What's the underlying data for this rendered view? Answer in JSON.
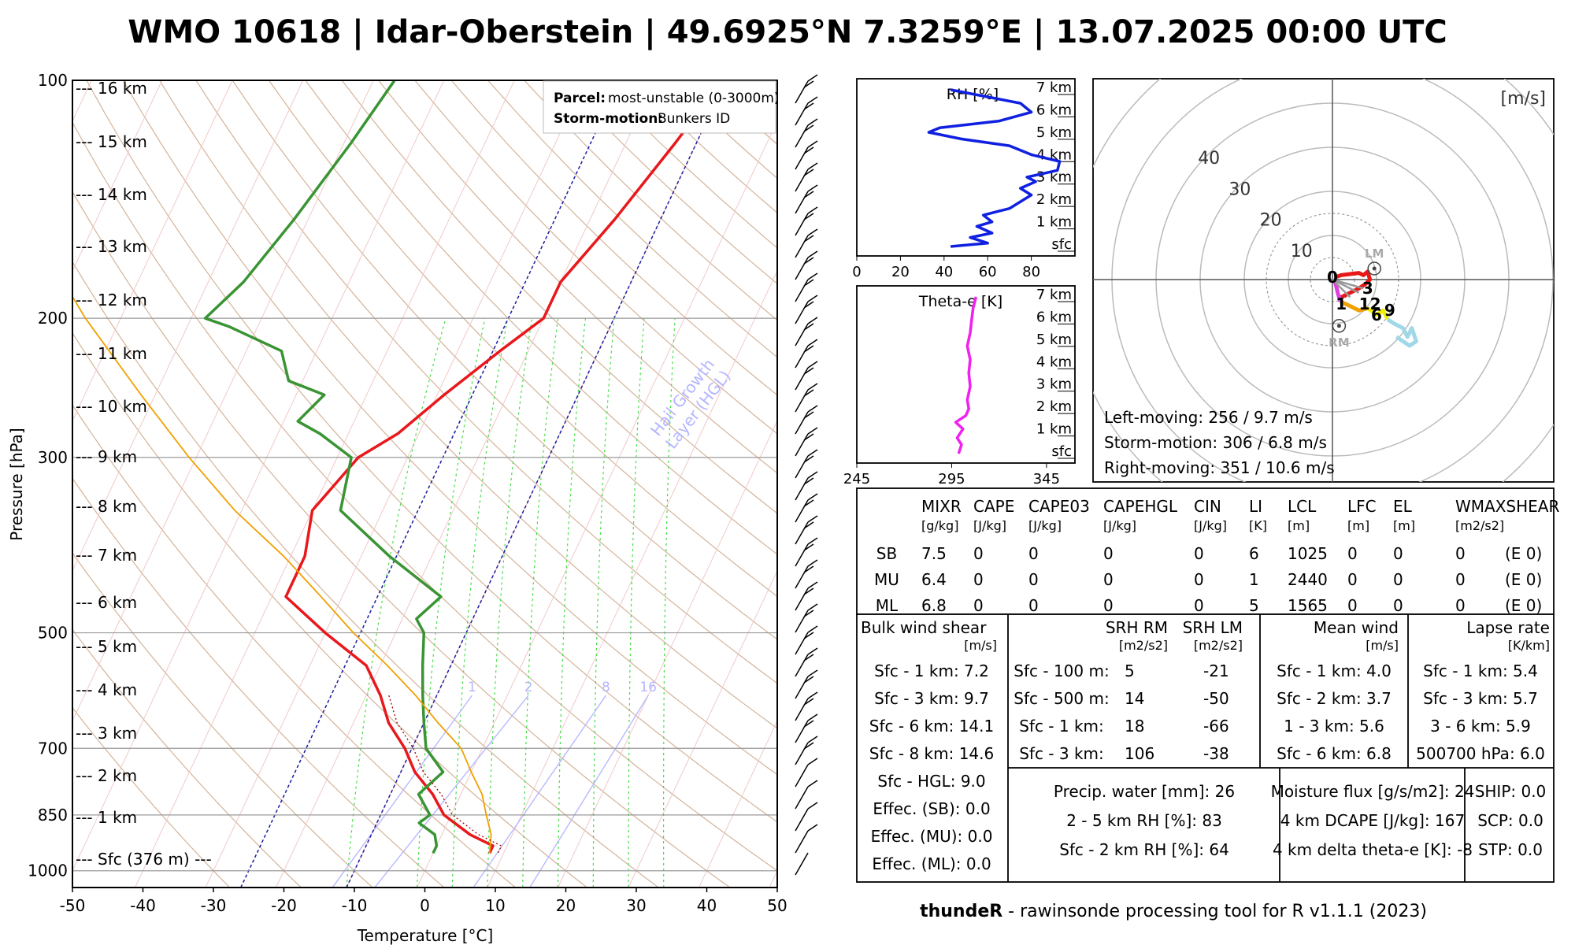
{
  "title": "WMO 10618 | Idar-Oberstein | 49.6925°N 7.3259°E | 13.07.2025 00:00 UTC",
  "footer": {
    "brand": "thundeR",
    "rest": " - rawinsonde processing tool for R v1.1.1 (2023)"
  },
  "skewt": {
    "ylabel": "Pressure [hPa]",
    "xlabel": "Temperature [°C]",
    "xticks": [
      -50,
      -40,
      -30,
      -20,
      -10,
      0,
      10,
      20,
      30,
      40,
      50
    ],
    "pressure_ticks": [
      100,
      200,
      300,
      500,
      700,
      850,
      1000
    ],
    "height_labels": [
      {
        "p": 100,
        "label": "--- 16 km"
      },
      {
        "p": 120,
        "label": "--- 15 km"
      },
      {
        "p": 143,
        "label": "--- 14 km"
      },
      {
        "p": 170,
        "label": "--- 13 km"
      },
      {
        "p": 202,
        "label": "--- 12 km"
      },
      {
        "p": 240,
        "label": "--- 11 km"
      },
      {
        "p": 285,
        "label": "--- 10 km"
      },
      {
        "p": 337,
        "label": "--- 9 km"
      },
      {
        "p": 398,
        "label": "--- 8 km"
      },
      {
        "p": 468,
        "label": "--- 7 km"
      },
      {
        "p": 546,
        "label": "--- 6 km"
      },
      {
        "p": 633,
        "label": "--- 5 km"
      },
      {
        "p": 732,
        "label": "--- 4 km"
      },
      {
        "p": 842,
        "label": "--- 3 km"
      },
      {
        "p": 963,
        "label": "--- 2 km"
      },
      {
        "p": 1095,
        "label": "--- 1 km"
      },
      {
        "p": 1230,
        "label": "--- Sfc (376 m) ---"
      }
    ],
    "mixing_ratio_labels": [
      "1",
      "2",
      "8",
      "16"
    ],
    "hgl_label_1": "Hail Growth",
    "hgl_label_2": "Layer (HGL)",
    "legend": {
      "parcel_key": "Parcel:",
      "parcel_val": "most-unstable (0-3000m)",
      "storm_key": "Storm-motion:",
      "storm_val": "Bunkers ID"
    }
  },
  "chart_data": [
    {
      "type": "line",
      "title": "",
      "xlabel": "Temperature [°C]",
      "ylabel": "Pressure [hPa]",
      "xlim": [
        -50,
        50
      ],
      "ylim": [
        1050,
        100
      ],
      "series": [
        {
          "values": [
            [
              100,
              -10.5
            ],
            [
              120,
              -13
            ],
            [
              150,
              -16.5
            ],
            [
              180,
              -20
            ],
            [
              200,
              -20
            ],
            [
              220,
              -24
            ],
            [
              250,
              -29
            ],
            [
              280,
              -33
            ],
            [
              300,
              -37
            ],
            [
              350,
              -40
            ],
            [
              400,
              -38
            ],
            [
              450,
              -38
            ],
            [
              500,
              -30
            ],
            [
              550,
              -22
            ],
            [
              600,
              -18
            ],
            [
              650,
              -15
            ],
            [
              700,
              -11
            ],
            [
              750,
              -8
            ],
            [
              800,
              -4
            ],
            [
              850,
              -1
            ],
            [
              900,
              4
            ],
            [
              930,
              8
            ],
            [
              950,
              8
            ]
          ]
        },
        {
          "values": [
            [
              100,
              -57
            ],
            [
              120,
              -59
            ],
            [
              150,
              -62
            ],
            [
              180,
              -65
            ],
            [
              200,
              -68
            ],
            [
              205,
              -64
            ],
            [
              220,
              -55
            ],
            [
              240,
              -52
            ],
            [
              250,
              -46
            ],
            [
              270,
              -48
            ],
            [
              280,
              -44
            ],
            [
              300,
              -38
            ],
            [
              350,
              -36
            ],
            [
              400,
              -26
            ],
            [
              450,
              -16
            ],
            [
              480,
              -18
            ],
            [
              500,
              -16
            ],
            [
              550,
              -14
            ],
            [
              600,
              -12
            ],
            [
              650,
              -10
            ],
            [
              700,
              -8
            ],
            [
              750,
              -4
            ],
            [
              800,
              -6
            ],
            [
              850,
              -3
            ],
            [
              870,
              -4
            ],
            [
              900,
              -1
            ],
            [
              930,
              0
            ],
            [
              950,
              0
            ]
          ]
        },
        {
          "values": [
            [
              950,
              8
            ],
            [
              900,
              7
            ],
            [
              850,
              5
            ],
            [
              800,
              3
            ],
            [
              750,
              0
            ],
            [
              700,
              -3
            ],
            [
              650,
              -8
            ],
            [
              600,
              -13
            ],
            [
              550,
              -19
            ],
            [
              500,
              -26
            ],
            [
              450,
              -33
            ],
            [
              400,
              -41
            ],
            [
              350,
              -51
            ],
            [
              300,
              -61
            ],
            [
              250,
              -72
            ],
            [
              200,
              -85
            ],
            [
              150,
              -100
            ],
            [
              100,
              -118
            ]
          ]
        }
      ]
    },
    {
      "type": "line",
      "title": "",
      "xlabel": "",
      "ylabel": "",
      "ylim": [
        0,
        7
      ],
      "xlim": [
        0,
        100
      ],
      "series": [
        {
          "values": [
            [
              0,
              43
            ],
            [
              0.15,
              60
            ],
            [
              0.4,
              52
            ],
            [
              0.6,
              62
            ],
            [
              0.9,
              55
            ],
            [
              1.1,
              62
            ],
            [
              1.4,
              58
            ],
            [
              1.7,
              70
            ],
            [
              2.0,
              75
            ],
            [
              2.3,
              80
            ],
            [
              2.6,
              75
            ],
            [
              2.9,
              82
            ],
            [
              3.1,
              78
            ],
            [
              3.4,
              92
            ],
            [
              3.8,
              93
            ],
            [
              4.1,
              80
            ],
            [
              4.5,
              70
            ],
            [
              4.8,
              48
            ],
            [
              5.1,
              33
            ],
            [
              5.3,
              38
            ],
            [
              5.6,
              65
            ],
            [
              6.0,
              80
            ],
            [
              6.4,
              75
            ],
            [
              7.0,
              43
            ]
          ]
        }
      ],
      "ticks_x": [
        "0",
        "20",
        "40",
        "60",
        "80"
      ],
      "height_ticks": [
        "7 km",
        "6 km",
        "5 km",
        "4 km",
        "3 km",
        "2 km",
        "1 km",
        "sfc"
      ],
      "label": "RH [%]"
    },
    {
      "type": "line",
      "title": "",
      "xlabel": "",
      "ylabel": "",
      "ylim": [
        0,
        7
      ],
      "xlim": [
        245,
        395
      ],
      "series": [
        {
          "values": [
            [
              0,
              315
            ],
            [
              0.4,
              317
            ],
            [
              0.7,
              314
            ],
            [
              1.1,
              318
            ],
            [
              1.4,
              313
            ],
            [
              1.7,
              320
            ],
            [
              2.0,
              322
            ],
            [
              2.4,
              321
            ],
            [
              3.0,
              323
            ],
            [
              3.6,
              322
            ],
            [
              4.2,
              323
            ],
            [
              4.8,
              321
            ],
            [
              5.4,
              323
            ],
            [
              6.0,
              324
            ],
            [
              6.5,
              325
            ],
            [
              7.0,
              327
            ]
          ]
        }
      ],
      "ticks_x": [
        "245",
        "295",
        "345"
      ],
      "height_ticks": [
        "7 km",
        "6 km",
        "5 km",
        "4 km",
        "3 km",
        "2 km",
        "1 km",
        "sfc"
      ],
      "label": "Theta-e [K]"
    },
    {
      "type": "line",
      "title": "",
      "xlabel": "",
      "ylabel": "",
      "xlim": [
        -40,
        40
      ],
      "ylim": [
        -40,
        40
      ],
      "unit_label": "[m/s]",
      "rings": [
        "10",
        "20",
        "30",
        "40"
      ],
      "series": [
        {
          "values": [
            [
              0.5,
              0
            ],
            [
              1.2,
              -3
            ],
            [
              1.8,
              -5
            ]
          ]
        },
        {
          "values": [
            [
              1.8,
              -5
            ],
            [
              4,
              -6
            ],
            [
              6,
              -7
            ],
            [
              8,
              -6.5
            ]
          ]
        },
        {
          "values": [
            [
              8,
              -6.5
            ],
            [
              10,
              -8
            ],
            [
              11.5,
              -7
            ],
            [
              12.5,
              -9
            ]
          ]
        },
        {
          "values": [
            [
              12.5,
              -9
            ],
            [
              14,
              -10
            ],
            [
              16,
              -11
            ],
            [
              17,
              -13
            ],
            [
              18,
              -11
            ],
            [
              19,
              -14
            ],
            [
              17.5,
              -15
            ],
            [
              16,
              -14
            ],
            [
              14.5,
              -13
            ]
          ]
        },
        {
          "values": [
            [
              0.5,
              0.5
            ],
            [
              2,
              1
            ],
            [
              6,
              1.5
            ],
            [
              7,
              1
            ],
            [
              8,
              1.8
            ],
            [
              8.5,
              0
            ],
            [
              7.5,
              -1
            ],
            [
              6,
              -2
            ],
            [
              4,
              -3
            ],
            [
              2,
              -4
            ]
          ]
        }
      ],
      "markers": [
        {
          "label": "LM",
          "x": 9.5,
          "y": 2.5
        },
        {
          "label": "RM",
          "x": 1.5,
          "y": -10.5
        },
        {
          "label": "0",
          "x": 0,
          "y": 0.5
        },
        {
          "label": "1",
          "x": 2,
          "y": -5.5
        },
        {
          "label": "3",
          "x": 8,
          "y": -2
        },
        {
          "label": "12",
          "x": 8.5,
          "y": -5.5
        },
        {
          "label": "6",
          "x": 10,
          "y": -8
        },
        {
          "label": "9",
          "x": 13,
          "y": -7
        }
      ]
    }
  ],
  "hodo_text": {
    "left_moving": "Left-moving: 256 / 9.7 m/s",
    "storm_motion": "Storm-motion: 306 / 6.8 m/s",
    "right_moving": "Right-moving: 351 / 10.6 m/s"
  },
  "params_table": {
    "headers": [
      "MIXR",
      "CAPE",
      "CAPE03",
      "CAPEHGL",
      "CIN",
      "LI",
      "LCL",
      "LFC",
      "EL",
      "WMAXSHEAR"
    ],
    "units": [
      "[g/kg]",
      "[J/kg]",
      "[J/kg]",
      "[J/kg]",
      "[J/kg]",
      "[K]",
      "[m]",
      "[m]",
      "[m]",
      "[m2/s2]"
    ],
    "rows": [
      {
        "name": "SB",
        "vals": [
          "7.5",
          "0",
          "0",
          "0",
          "0",
          "6",
          "1025",
          "0",
          "0",
          "0",
          "(E 0)"
        ]
      },
      {
        "name": "MU",
        "vals": [
          "6.4",
          "0",
          "0",
          "0",
          "0",
          "1",
          "2440",
          "0",
          "0",
          "0",
          "(E 0)"
        ]
      },
      {
        "name": "ML",
        "vals": [
          "6.8",
          "0",
          "0",
          "0",
          "0",
          "5",
          "1565",
          "0",
          "0",
          "0",
          "(E 0)"
        ]
      }
    ]
  },
  "shear": {
    "title": "Bulk wind shear",
    "unit": "[m/s]",
    "rows": [
      "Sfc - 1 km: 7.2",
      "Sfc - 3 km: 9.7",
      "Sfc - 6 km: 14.1",
      "Sfc - 8 km: 14.6",
      "Sfc - HGL: 9.0",
      "Effec. (SB): 0.0",
      "Effec. (MU): 0.0",
      "Effec. (ML): 0.0"
    ]
  },
  "srh": {
    "h_rm": "SRH RM",
    "h_lm": "SRH LM",
    "u_rm": "[m2/s2]",
    "u_lm": "[m2/s2]",
    "rows": [
      {
        "label": "Sfc - 100 m:",
        "rm": "5",
        "lm": "-21"
      },
      {
        "label": "Sfc - 500 m:",
        "rm": "14",
        "lm": "-50"
      },
      {
        "label": "Sfc - 1 km:",
        "rm": "18",
        "lm": "-66"
      },
      {
        "label": "Sfc - 3 km:",
        "rm": "106",
        "lm": "-38"
      }
    ]
  },
  "mean_wind": {
    "title": "Mean wind",
    "unit": "[m/s]",
    "rows": [
      "Sfc - 1 km: 4.0",
      "Sfc - 2 km: 3.7",
      "1 - 3 km: 5.6",
      "Sfc - 6 km: 6.8"
    ]
  },
  "lapse": {
    "title": "Lapse rate",
    "unit": "[K/km]",
    "rows": [
      "Sfc - 1 km: 5.4",
      "Sfc - 3 km: 5.7",
      "3 - 6 km: 5.9",
      "500700 hPa: 6.0"
    ]
  },
  "moisture_left": [
    "Precip. water [mm]: 26",
    "2 - 5 km RH [%]: 83",
    "Sfc - 2 km RH [%]: 64"
  ],
  "moisture_right": [
    "Moisture flux [g/s/m2]: 24",
    "4 km DCAPE [J/kg]: 167",
    "4 km delta theta-e [K]: -8"
  ],
  "composite": [
    "SHIP: 0.0",
    "SCP: 0.0",
    "STP: 0.0"
  ],
  "colors": {
    "temp": "#e8181c",
    "dew": "#3a9434",
    "parcel": "#f0a000",
    "rh": "#1020e0",
    "thetae": "#f020f0",
    "grid": "#888888"
  }
}
